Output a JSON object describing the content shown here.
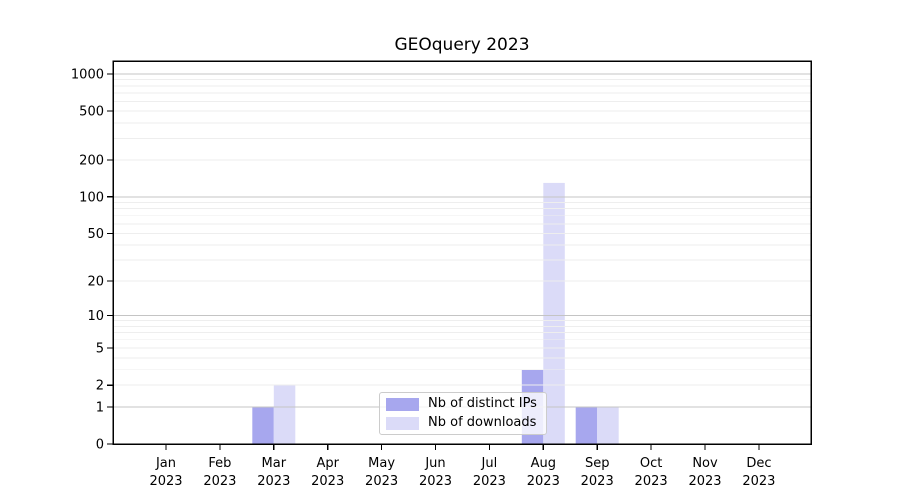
{
  "chart_data": {
    "type": "bar",
    "title": "GEOquery 2023",
    "categories": [
      "Jan",
      "Feb",
      "Mar",
      "Apr",
      "May",
      "Jun",
      "Jul",
      "Aug",
      "Sep",
      "Oct",
      "Nov",
      "Dec"
    ],
    "xtick_year": "2023",
    "series": [
      {
        "name": "Nb of distinct IPs",
        "color": "#a7a7ee",
        "values": [
          0,
          0,
          1,
          0,
          0,
          0,
          0,
          3,
          1,
          0,
          0,
          0
        ]
      },
      {
        "name": "Nb of downloads",
        "color": "#dbdbf8",
        "values": [
          0,
          0,
          2,
          0,
          0,
          0,
          0,
          130,
          1,
          0,
          0,
          0
        ]
      }
    ],
    "y_axis": {
      "scale": "log1p",
      "tick_labels": [
        1000,
        500,
        200,
        100,
        50,
        20,
        10,
        5,
        2,
        1,
        0
      ],
      "major_grid_values": [
        1,
        10,
        100,
        1000
      ],
      "max_log1p": 3.106
    },
    "x_axis": {
      "tick_count": 12
    },
    "legend": {
      "position": "lower center"
    },
    "grid": "horizontal"
  },
  "colors": {
    "background": "#ffffff",
    "spine": "#000000",
    "major_grid": "#c4c4c4",
    "minor_grid": "#eeeeee",
    "bar_distinct_ips": "#a7a7ee",
    "bar_downloads": "#dbdbf8",
    "legend_border": "#cccccc"
  }
}
